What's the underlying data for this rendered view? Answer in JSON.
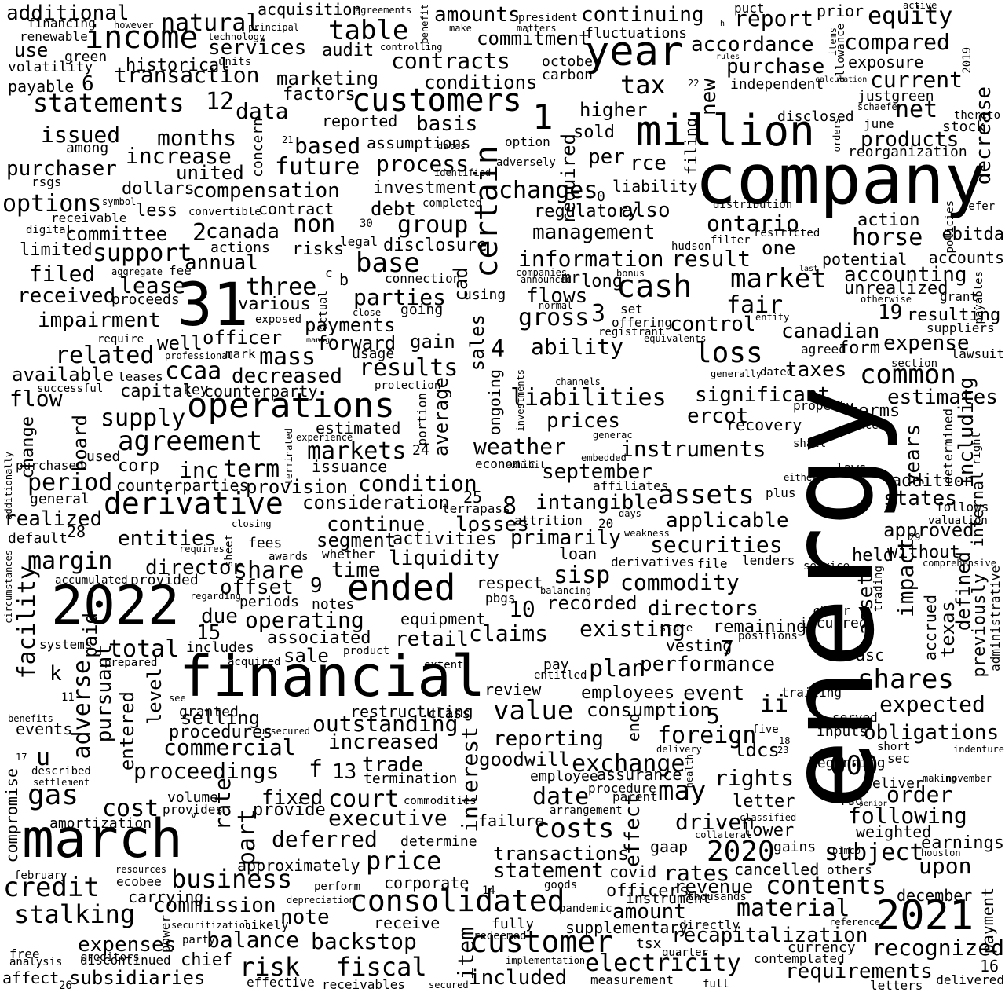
{
  "words": [
    "energy",
    "company",
    "financial",
    "march",
    "2022",
    "31",
    "million",
    "year",
    "2021",
    "operations",
    "ended",
    "income",
    "customers",
    "certain",
    "cash",
    "derivative",
    "consolidated",
    "customer",
    "agreement",
    "market",
    "statements",
    "table",
    "credit",
    "loss",
    "assets",
    "common",
    "shares",
    "transaction",
    "gas",
    "stalking",
    "business",
    "value",
    "costs",
    "may",
    "electricity",
    "fiscal",
    "interest",
    "risk",
    "subsidiaries",
    "expenses",
    "including",
    "horse",
    "accounting",
    "current",
    "equity",
    "compared",
    "net",
    "tax",
    "contracts",
    "report",
    "accordance",
    "purchase",
    "continuing",
    "management",
    "information",
    "result",
    "fair",
    "gross",
    "results",
    "liabilities",
    "prices",
    "weather",
    "instruments",
    "september",
    "commodity",
    "securities",
    "applicable",
    "primarily",
    "directors",
    "claims",
    "performance",
    "plan",
    "existing",
    "recorded",
    "outstanding",
    "increased",
    "commercial",
    "proceedings",
    "court",
    "executive",
    "date",
    "price",
    "deferred",
    "following",
    "order",
    "obligations",
    "expected",
    "recapitalization",
    "requirements",
    "recognized",
    "material",
    "contents",
    "subject",
    "upon",
    "statement",
    "transactions",
    "amount",
    "backstop",
    "commission",
    "balance",
    "note",
    "chief",
    "item",
    "sales",
    "average",
    "impairment",
    "related",
    "officer",
    "payments",
    "forward",
    "control",
    "canadian",
    "form",
    "expense",
    "19",
    "resulting",
    "taxes",
    "significant",
    "estimates",
    "terms",
    "ercot",
    "recovery",
    "years",
    "states",
    "addition",
    "approved",
    "impact",
    "asset",
    "defined",
    "previously",
    "texas",
    "accrued",
    "held",
    "without",
    "asc",
    "period",
    "condition",
    "consideration",
    "losses",
    "continue",
    "segment",
    "activities",
    "liquidity",
    "entities",
    "margin",
    "director",
    "share",
    "offset",
    "time",
    "sisp",
    "operating",
    "associated",
    "retail",
    "total",
    "due",
    "sale",
    "facility",
    "paid",
    "adverse",
    "pursuant",
    "level",
    "entered",
    "selling",
    "procedures",
    "rate",
    "part",
    "fixed",
    "provide",
    "cost",
    "amortization",
    "compromise",
    "u",
    "f",
    "13",
    "trade",
    "termination",
    "goodwill",
    "exchange",
    "rights",
    "letter",
    "foreign",
    "event",
    "consumption",
    "reporting",
    "5",
    "ii",
    "ldcs",
    "000",
    "inputs",
    "driven",
    "lower",
    "2020",
    "gaap",
    "rates",
    "revenue",
    "cancelled",
    "gains",
    "earnings",
    "weighted",
    "months",
    "increase",
    "united",
    "future",
    "based",
    "process",
    "investment",
    "changes",
    "per",
    "rce",
    "regulatory",
    "also",
    "ontario",
    "one",
    "action",
    "ebitda",
    "potential",
    "accounts",
    "unrealized",
    "purchaser",
    "options",
    "compensation",
    "contract",
    "debt",
    "group",
    "base",
    "parties",
    "flows",
    "3",
    "ability",
    "4",
    "gain",
    "well",
    "mass",
    "decreased",
    "ccaa",
    "capital",
    "supply",
    "board",
    "inc",
    "term",
    "markets",
    "issuance",
    "provision",
    "8",
    "intangible",
    "mr",
    "long",
    "flow",
    "available",
    "change",
    "corp",
    "counterparties",
    "realized",
    "28",
    "general",
    "filed",
    "received",
    "proceeds",
    "lease",
    "annual",
    "support",
    "three",
    "various",
    "non",
    "risks",
    "disclosure",
    "cad",
    "committee",
    "canada",
    "2",
    "limited",
    "less",
    "dollars",
    "rsgs",
    "issued",
    "among",
    "6",
    "12",
    "natural",
    "services",
    "audit",
    "marketing",
    "factors",
    "data",
    "reported",
    "basis",
    "assumptions",
    "conditions",
    "commitment",
    "amounts",
    "october",
    "carbon",
    "fluctuations",
    "historical",
    "units",
    "green",
    "use",
    "volatility",
    "payable",
    "renewable",
    "financing",
    "additional",
    "acquisition",
    "agreements",
    "principal",
    "however",
    "technology",
    "controlling",
    "benefit",
    "make",
    "matters",
    "president",
    "active",
    "puct",
    "prior",
    "h",
    "items",
    "allowance",
    "2019",
    "exposure",
    "rules",
    "independent",
    "calculation",
    "justgreen",
    "schaefer",
    "thereto",
    "june",
    "stock",
    "orders",
    "reorganization",
    "products",
    "decrease",
    "filing",
    "sold",
    "higher",
    "required",
    "new",
    "1",
    "22",
    "disclosed",
    "concern",
    "21",
    "dates",
    "option",
    "adversely",
    "identified",
    "completed",
    "distribution",
    "restricted",
    "filter",
    "hudson",
    "bonus",
    "last",
    "liability",
    "0",
    "refer",
    "policies",
    "receivable",
    "convertible",
    "symbol",
    "digital",
    "30",
    "actions",
    "legal",
    "fee",
    "aggregate",
    "c",
    "b",
    "connection",
    "using",
    "companies",
    "announced",
    "normal",
    "close",
    "exposed",
    "actual",
    "going",
    "set",
    "offering",
    "registrant",
    "manage",
    "require",
    "professional",
    "usage",
    "mark",
    "equivalents",
    "entity",
    "otherwise",
    "grant",
    "payables",
    "suppliers",
    "lawsuit",
    "section",
    "agreed",
    "dated",
    "generally",
    "key",
    "counterparty",
    "protection",
    "investments",
    "channels",
    "successful",
    "leases",
    "estimated",
    "experience",
    "terminated",
    "24",
    "portion",
    "ongoing",
    "economic",
    "exhibit",
    "embedded",
    "generac",
    "shall",
    "property",
    "excess",
    "determined",
    "internal",
    "right",
    "cause",
    "either",
    "laws",
    "affiliates",
    "plus",
    "follows",
    "valuation",
    "29",
    "used",
    "purchased",
    "additionally",
    "closing",
    "days",
    "weakness",
    "lenders",
    "service",
    "20",
    "25",
    "terrapass",
    "attrition",
    "requires",
    "sheet",
    "fees",
    "awards",
    "whether",
    "loan",
    "derivatives",
    "file",
    "comprehensive",
    "trading",
    "administrative",
    "default",
    "accumulated",
    "provided",
    "regarding",
    "pbgs",
    "balancing",
    "respect",
    "9",
    "10",
    "circumstances",
    "periods",
    "notes",
    "equipment",
    "15",
    "includes",
    "state",
    "positions",
    "remaining",
    "incurred",
    "chair",
    "vesting",
    "7",
    "systems",
    "k",
    "prepared",
    "acquired",
    "product",
    "extent",
    "pay",
    "entitled",
    "review",
    "trailing",
    "served",
    "11",
    "benefits",
    "see",
    "granted",
    "unsecured",
    "restructuring",
    "class",
    "five",
    "delivery",
    "health",
    "23",
    "18",
    "indenture",
    "short",
    "events",
    "17",
    "described",
    "settlement",
    "volume",
    "provides",
    "v",
    "commodities",
    "failure",
    "arrangement",
    "procedure",
    "parent",
    "assurance",
    "employee",
    "employees",
    "beginning",
    "sec",
    "making",
    "november",
    "deliver",
    "rsg",
    "senior",
    "classified",
    "february",
    "resources",
    "ecobee",
    "carrying",
    "approximately",
    "corporate",
    "determine",
    "collateral",
    "pimco",
    "houston",
    "others",
    "depreciation",
    "perform",
    "goods",
    "14",
    "receive",
    "fully",
    "redeemed",
    "securitization",
    "power",
    "party",
    "likely",
    "creditors",
    "free",
    "analysis",
    "discontinued",
    "affect",
    "26",
    "effective",
    "receivables",
    "secured",
    "implementation",
    "measurement",
    "full",
    "quarter",
    "directly",
    "instrument",
    "thousands",
    "supplementary",
    "tsx",
    "officers",
    "covid",
    "december",
    "contemplated",
    "currency",
    "reference",
    "letters",
    "16",
    "delivered",
    "payment",
    "effect",
    "end",
    "included",
    "pandemic"
  ]
}
